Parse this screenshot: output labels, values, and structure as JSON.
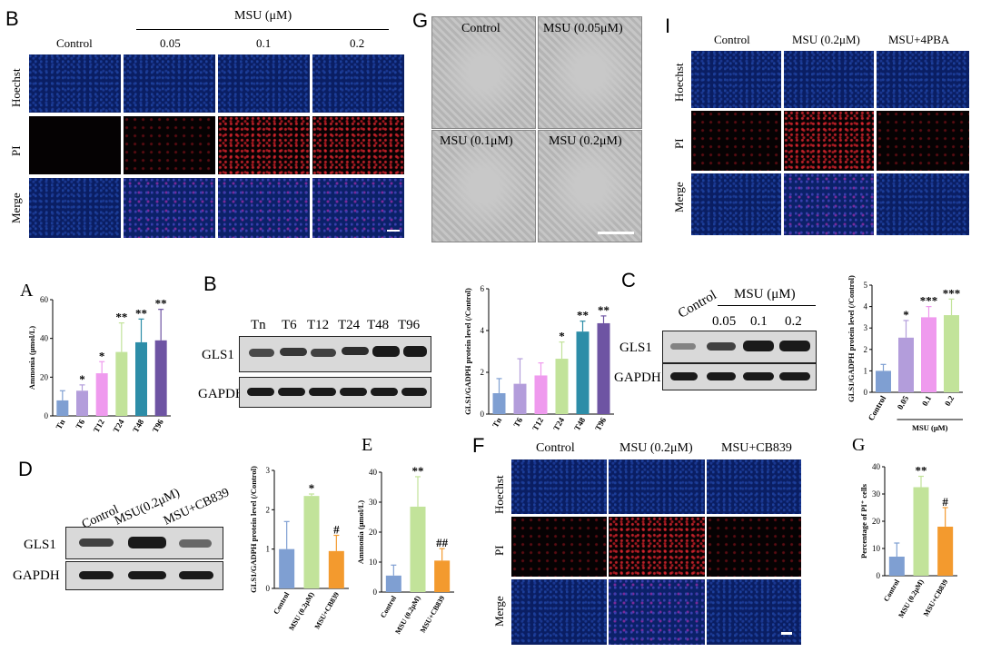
{
  "panels": {
    "topB": {
      "letter": "B",
      "header_group": "MSU (μM)",
      "columns": [
        "Control",
        "0.05",
        "0.1",
        "0.2"
      ],
      "rows": [
        "Hoechst",
        "PI",
        "Merge"
      ]
    },
    "topG": {
      "letter": "G",
      "tiles": [
        "Control",
        "MSU (0.05μM)",
        "MSU (0.1μM)",
        "MSU (0.2μM)"
      ]
    },
    "topI": {
      "letter": "I",
      "columns": [
        "Control",
        "MSU (0.2μM)",
        "MSU+4PBA"
      ],
      "rows": [
        "Hoechst",
        "PI",
        "Merge"
      ]
    },
    "midB_blot": {
      "letter": "B",
      "lanes": [
        "Tn",
        "T6",
        "T12",
        "T24",
        "T48",
        "T96"
      ],
      "proteins": [
        "GLS1",
        "GAPDH"
      ]
    },
    "midC_blot": {
      "letter": "C",
      "control_lane": "Control",
      "group_label": "MSU (μM)",
      "lanes": [
        "0.05",
        "0.1",
        "0.2"
      ],
      "proteins": [
        "GLS1",
        "GAPDH"
      ]
    },
    "botD_blot": {
      "letter": "D",
      "lanes": [
        "Control",
        "MSU(0.2μM)",
        "MSU+CB839"
      ],
      "proteins": [
        "GLS1",
        "GAPDH"
      ]
    },
    "botF": {
      "letter": "F",
      "columns": [
        "Control",
        "MSU (0.2μM)",
        "MSU+CB839"
      ],
      "rows": [
        "Hoechst",
        "PI",
        "Merge"
      ]
    }
  },
  "chart_data": [
    {
      "id": "A",
      "letter": "A",
      "type": "bar",
      "categories": [
        "Tn",
        "T6",
        "T12",
        "T24",
        "T48",
        "T96"
      ],
      "values": [
        8,
        13,
        22,
        33,
        38,
        39
      ],
      "errors": [
        5,
        3,
        6,
        15,
        12,
        16
      ],
      "sig": [
        "",
        "*",
        "*",
        "**",
        "**",
        "**"
      ],
      "colors": [
        "#7f9fd2",
        "#b39ddb",
        "#ef9aee",
        "#c2e39a",
        "#2d8da8",
        "#6e54a3"
      ],
      "ylabel": "Ammonia (μmol/L)",
      "ylim": [
        0,
        60
      ],
      "yticks": [
        0,
        20,
        40,
        60
      ]
    },
    {
      "id": "B2",
      "letter": "",
      "type": "bar",
      "categories": [
        "Tn",
        "T6",
        "T12",
        "T24",
        "T48",
        "T96"
      ],
      "values": [
        1.0,
        1.45,
        1.85,
        2.65,
        3.95,
        4.35
      ],
      "errors": [
        0.7,
        1.2,
        0.6,
        0.8,
        0.5,
        0.35
      ],
      "sig": [
        "",
        "",
        "",
        "*",
        "**",
        "**"
      ],
      "colors": [
        "#7f9fd2",
        "#b39ddb",
        "#ef9aee",
        "#c2e39a",
        "#2d8da8",
        "#6e54a3"
      ],
      "ylabel": "GLS1/GADPH protein level (/Control)",
      "ylim": [
        0,
        6
      ],
      "yticks": [
        0,
        2,
        4,
        6
      ]
    },
    {
      "id": "C2",
      "letter": "",
      "type": "bar",
      "categories": [
        "Control",
        "0.05",
        "0.1",
        "0.2"
      ],
      "values": [
        1.0,
        2.55,
        3.5,
        3.6
      ],
      "errors": [
        0.3,
        0.8,
        0.5,
        0.75
      ],
      "sig": [
        "",
        "*",
        "***",
        "***"
      ],
      "colors": [
        "#7f9fd2",
        "#b39ddb",
        "#ef9aee",
        "#c2e39a"
      ],
      "ylabel": "GLS1/GADPH protein level (/Control)",
      "xgroup": "MSU (μM)",
      "ylim": [
        0,
        5
      ],
      "yticks": [
        0,
        1,
        2,
        3,
        4,
        5
      ]
    },
    {
      "id": "D2",
      "letter": "",
      "type": "bar",
      "categories": [
        "Control",
        "MSU (0.2μM)",
        "MSU+CB839"
      ],
      "values": [
        1.0,
        2.35,
        0.95
      ],
      "errors": [
        0.7,
        0.05,
        0.4
      ],
      "sig": [
        "",
        "*",
        "#"
      ],
      "colors": [
        "#7f9fd2",
        "#c2e39a",
        "#f39a2e"
      ],
      "ylabel": "GLS1/GADPH protein level (/Control)",
      "ylim": [
        0,
        3
      ],
      "yticks": [
        0,
        1,
        2,
        3
      ]
    },
    {
      "id": "E",
      "letter": "E",
      "type": "bar",
      "categories": [
        "Control",
        "MSU (0.2μM)",
        "MSU+CB839"
      ],
      "values": [
        5.5,
        28.5,
        10.5
      ],
      "errors": [
        3.5,
        10,
        4
      ],
      "sig": [
        "",
        "**",
        "##"
      ],
      "colors": [
        "#7f9fd2",
        "#c2e39a",
        "#f39a2e"
      ],
      "ylabel": "Ammonia (μmol/L)",
      "ylim": [
        0,
        40
      ],
      "yticks": [
        0,
        10,
        20,
        30,
        40
      ]
    },
    {
      "id": "G2",
      "letter": "G",
      "type": "bar",
      "categories": [
        "Control",
        "MSU (0.2μM)",
        "MSU+CB839"
      ],
      "values": [
        7,
        32.5,
        18
      ],
      "errors": [
        5,
        4,
        7
      ],
      "sig": [
        "",
        "**",
        "#"
      ],
      "colors": [
        "#7f9fd2",
        "#c2e39a",
        "#f39a2e"
      ],
      "ylabel": "Percentage of PI⁺ cells",
      "ylim": [
        0,
        40
      ],
      "yticks": [
        0,
        10,
        20,
        30,
        40
      ]
    }
  ]
}
